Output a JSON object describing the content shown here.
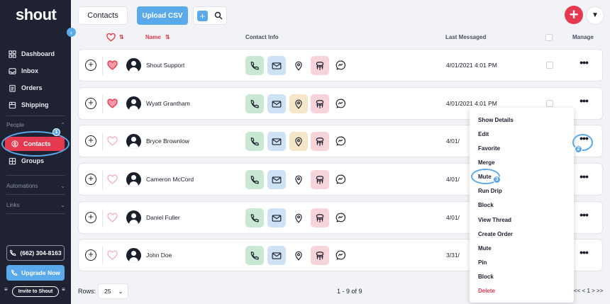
{
  "sidebar": {
    "logo": "shout",
    "nav": [
      {
        "label": "Dashboard",
        "icon": "grid-icon"
      },
      {
        "label": "Inbox",
        "icon": "inbox-icon"
      },
      {
        "label": "Orders",
        "icon": "clipboard-icon"
      },
      {
        "label": "Shipping",
        "icon": "box-icon"
      }
    ],
    "people_label": "People",
    "people_items": [
      {
        "label": "Contacts",
        "icon": "user-circle-icon",
        "active": true
      },
      {
        "label": "Groups",
        "icon": "grid-icon"
      }
    ],
    "automations_label": "Automations",
    "links_label": "Links",
    "phone": "(662) 304-8163",
    "upgrade_label": "Upgrade Now",
    "invite_label": "Invite to Shout"
  },
  "topbar": {
    "contacts_tab": "Contacts",
    "upload_label": "Upload CSV"
  },
  "table": {
    "headers": {
      "name": "Name",
      "contact_info": "Contact Info",
      "last_messaged": "Last Messaged",
      "manage": "Manage"
    },
    "rows": [
      {
        "name": "Shout Support",
        "favorite": true,
        "last_messaged": "4/01/2021 4:01 PM",
        "location_highlight": false
      },
      {
        "name": "Wyatt Grantham",
        "favorite": true,
        "last_messaged": "4/01/2021 4:01 PM",
        "location_highlight": true
      },
      {
        "name": "Bryce Brownlow",
        "favorite": false,
        "last_messaged": "4/01/",
        "location_highlight": true
      },
      {
        "name": "Cameron McCord",
        "favorite": false,
        "last_messaged": "4/01/",
        "location_highlight": false
      },
      {
        "name": "Daniel Fuller",
        "favorite": false,
        "last_messaged": "4/01/",
        "location_highlight": false
      },
      {
        "name": "John Doe",
        "favorite": false,
        "last_messaged": "3/31/",
        "location_highlight": false
      }
    ]
  },
  "footer": {
    "rows_label": "Rows:",
    "rows_value": "25",
    "page_count": "1 - 9 of 9",
    "pager": "<< < 1 > >>"
  },
  "menu": {
    "items": [
      "Show Details",
      "Edit",
      "Favorite",
      "Merge",
      "Mute",
      "Run Drip",
      "Block",
      "View Thread",
      "Create Order",
      "Mute",
      "Pin",
      "Block",
      "Delete"
    ]
  },
  "annotations": [
    "1",
    "2",
    "3"
  ],
  "colors": {
    "sidebar": "#1e2233",
    "accent_red": "#e5394f",
    "accent_blue": "#5aa9ea",
    "phone_tile": "#c9e8d3",
    "mail_tile": "#cde2f4",
    "location_tile": "#f6e6c9",
    "sms_tile": "#f7d4da"
  }
}
